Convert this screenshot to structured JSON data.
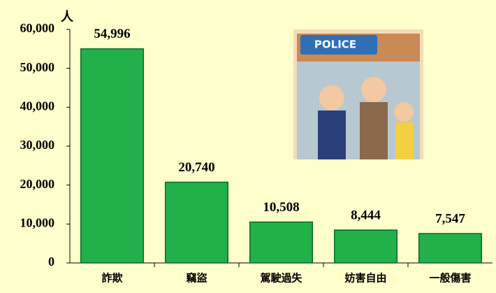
{
  "chart_data": {
    "type": "bar",
    "y_label": "人",
    "categories": [
      "詐欺",
      "竊盜",
      "駕駛過失",
      "妨害自由",
      "一般傷害"
    ],
    "values": [
      54996,
      20740,
      10508,
      8444,
      7547
    ],
    "value_labels": [
      "54,996",
      "20,740",
      "10,508",
      "8,444",
      "7,547"
    ],
    "color": "#22b04a",
    "ylim": [
      0,
      60000
    ],
    "yticks": [
      0,
      {
        "value": 10000,
        "label": "10,000"
      },
      {
        "value": 20000,
        "label": "20,000"
      },
      {
        "value": 30000,
        "label": "30,000"
      },
      {
        "value": 40000,
        "label": "40,000"
      },
      {
        "value": 50000,
        "label": "50,000"
      },
      {
        "value": 60000,
        "label": "60,000"
      }
    ],
    "grid": false
  },
  "illustration": {
    "sign": "POLICE"
  }
}
